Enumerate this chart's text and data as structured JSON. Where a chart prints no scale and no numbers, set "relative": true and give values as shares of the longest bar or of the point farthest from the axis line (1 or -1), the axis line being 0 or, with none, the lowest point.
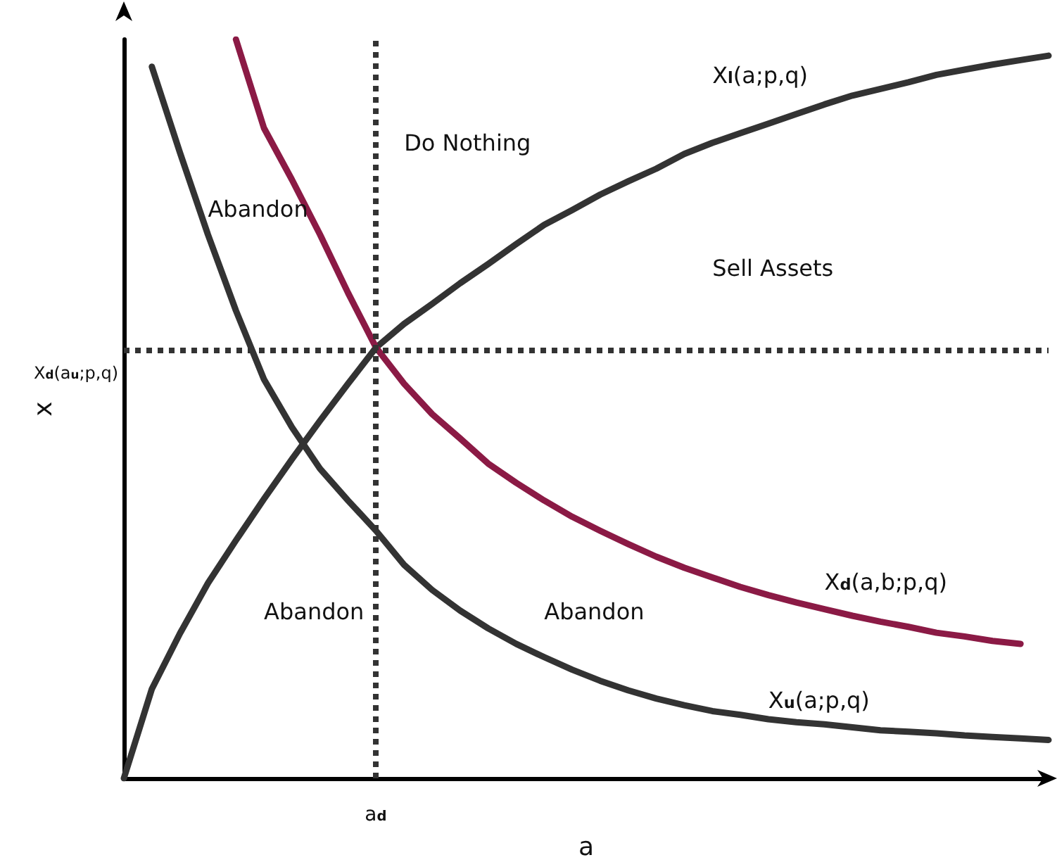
{
  "chart_data": {
    "type": "line",
    "relative": true,
    "xlabel": "a",
    "ylabel": "x",
    "grid": false,
    "marker": "none",
    "line_style": "solid",
    "categories": [
      null,
      null,
      null,
      null,
      null,
      null,
      null,
      null,
      null,
      null,
      null,
      null,
      null,
      null,
      null,
      null,
      null,
      null,
      null,
      null,
      null,
      null,
      null,
      null,
      null,
      null,
      null,
      null,
      null,
      null,
      null,
      null,
      null,
      null
    ],
    "series": [
      {
        "name": "X$_{l}$(a;p,q)",
        "color": "#333333",
        "values": [
          0,
          0.121,
          0.196,
          0.264,
          0.322,
          0.378,
          0.432,
          0.484,
          0.534,
          0.583,
          0.615,
          0.642,
          0.67,
          0.696,
          0.723,
          0.749,
          0.769,
          0.79,
          0.808,
          0.825,
          0.845,
          0.86,
          0.873,
          0.886,
          0.899,
          0.912,
          0.924,
          0.933,
          0.942,
          0.952,
          0.959,
          0.966,
          0.972,
          0.978
        ]
      },
      {
        "name": "X$_{u}$(a;p,q)",
        "color": "#333333",
        "values": [
          null,
          0.963,
          0.847,
          0.736,
          0.633,
          0.54,
          0.475,
          0.419,
          0.376,
          0.335,
          0.289,
          0.255,
          0.227,
          0.203,
          0.182,
          0.164,
          0.147,
          0.132,
          0.119,
          0.108,
          0.099,
          0.091,
          0.086,
          0.08,
          0.076,
          0.073,
          0.069,
          0.065,
          0.063,
          0.061,
          0.058,
          0.056,
          0.054,
          0.052
        ]
      },
      {
        "name": "X$_{d}$(a,b;p,q)",
        "color": "#8b1a45",
        "values": [
          null,
          null,
          null,
          null,
          1.0,
          0.88,
          0.81,
          0.736,
          0.657,
          0.583,
          0.534,
          0.493,
          0.46,
          0.426,
          0.4,
          0.376,
          0.354,
          0.335,
          0.317,
          0.3,
          0.285,
          0.272,
          0.259,
          0.248,
          0.238,
          0.229,
          0.22,
          0.212,
          0.205,
          0.197,
          0.192,
          0.186,
          0.182,
          null
        ]
      }
    ],
    "ref_lines": [
      {
        "axis": "y",
        "value": 0.583,
        "label": "X$_{d}$(a$_{u}$;p,q)",
        "color": "#333333",
        "line_style": "dotted"
      }
    ],
    "annotations": [
      "Do Nothing",
      "Abandon",
      "Sell Assets",
      "Abandon",
      "Abandon",
      "a$_{d}$"
    ]
  }
}
